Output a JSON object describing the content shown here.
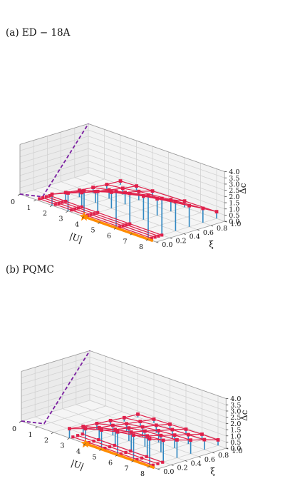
{
  "chart_data": [
    {
      "type": "3d-scatter-surface",
      "title": "(a) ED  −  18A",
      "xlabel": "|U|",
      "ylabel": "ξ",
      "zlabel": "Δc",
      "xticks": [
        "0",
        "1",
        "2",
        "3",
        "4",
        "5",
        "6",
        "7",
        "8"
      ],
      "yticks": [
        "0.0",
        "0.2",
        "0.4",
        "0.6",
        "0.8",
        "1.0"
      ],
      "zticks": [
        "0.0",
        "0.5",
        "1.0",
        "1.5",
        "2.0",
        "2.5",
        "3.0",
        "3.5",
        "4.0"
      ],
      "xlim": [
        0,
        8.5
      ],
      "ylim": [
        0,
        1
      ],
      "zlim": [
        0,
        4
      ],
      "xi_values": [
        0.0,
        0.2,
        0.4,
        0.6,
        0.8,
        1.0
      ],
      "u_values": [
        2,
        3,
        4,
        6,
        8
      ],
      "surface_z": [
        [
          0.9,
          1.45,
          2.1,
          2.95,
          3.55
        ],
        [
          0.7,
          1.15,
          1.7,
          2.45,
          2.95
        ],
        [
          0.55,
          0.9,
          1.3,
          1.9,
          2.35
        ],
        [
          0.45,
          0.7,
          0.95,
          1.35,
          1.7
        ],
        [
          0.35,
          0.5,
          0.7,
          0.95,
          1.15
        ],
        [
          0.3,
          0.35,
          0.4,
          0.5,
          0.55
        ]
      ],
      "floor_points_u": [
        1,
        2,
        3,
        4,
        6,
        8
      ],
      "floor_points_xi": [
        0.05,
        0.1,
        0.15,
        0.2
      ],
      "transition_star": {
        "u": 4,
        "xi": 0.0
      },
      "orange_line": {
        "u_start": 4,
        "u_end": 8.3,
        "xi": 0.0
      },
      "dashed_boundary": [
        [
          0,
          1.0,
          0
        ],
        [
          1.2,
          1.0,
          0.25
        ],
        [
          0,
          1.0,
          4.0
        ]
      ]
    },
    {
      "type": "3d-scatter-surface",
      "title": "(b) PQMC",
      "xlabel": "|U|",
      "ylabel": "ξ",
      "zlabel": "Δc",
      "xticks": [
        "0",
        "1",
        "2",
        "3",
        "4",
        "5",
        "6",
        "7",
        "8"
      ],
      "yticks": [
        "0.0",
        "0.2",
        "0.4",
        "0.6",
        "0.8",
        "1.0"
      ],
      "zticks": [
        "0.0",
        "0.5",
        "1.0",
        "1.5",
        "2.0",
        "2.5",
        "3.0",
        "3.5",
        "4.0"
      ],
      "xlim": [
        0,
        8.5
      ],
      "ylim": [
        0,
        1
      ],
      "zlim": [
        0,
        4
      ],
      "xi_values": [
        0.0,
        0.2,
        0.4,
        0.6,
        0.8,
        1.0
      ],
      "u_values": [
        3,
        4,
        5,
        6,
        7,
        8
      ],
      "surface_z": [
        [
          0.75,
          1.2,
          1.55,
          1.85,
          2.05,
          2.2
        ],
        [
          0.6,
          0.95,
          1.25,
          1.5,
          1.65,
          1.75
        ],
        [
          0.5,
          0.8,
          1.05,
          1.25,
          1.35,
          1.45
        ],
        [
          0.4,
          0.6,
          0.8,
          0.95,
          1.05,
          1.1
        ],
        [
          0.3,
          0.45,
          0.6,
          0.7,
          0.75,
          0.8
        ],
        [
          0.25,
          0.3,
          0.35,
          0.4,
          0.45,
          0.45
        ]
      ],
      "transition_star": {
        "u": 4,
        "xi": 0.0
      },
      "orange_line": {
        "u_start": 4,
        "u_end": 8.3,
        "xi": 0.0
      },
      "dashed_boundary": [
        [
          0,
          1.0,
          0
        ],
        [
          1.2,
          1.0,
          0.25
        ],
        [
          0,
          1.0,
          4.0
        ]
      ]
    }
  ]
}
